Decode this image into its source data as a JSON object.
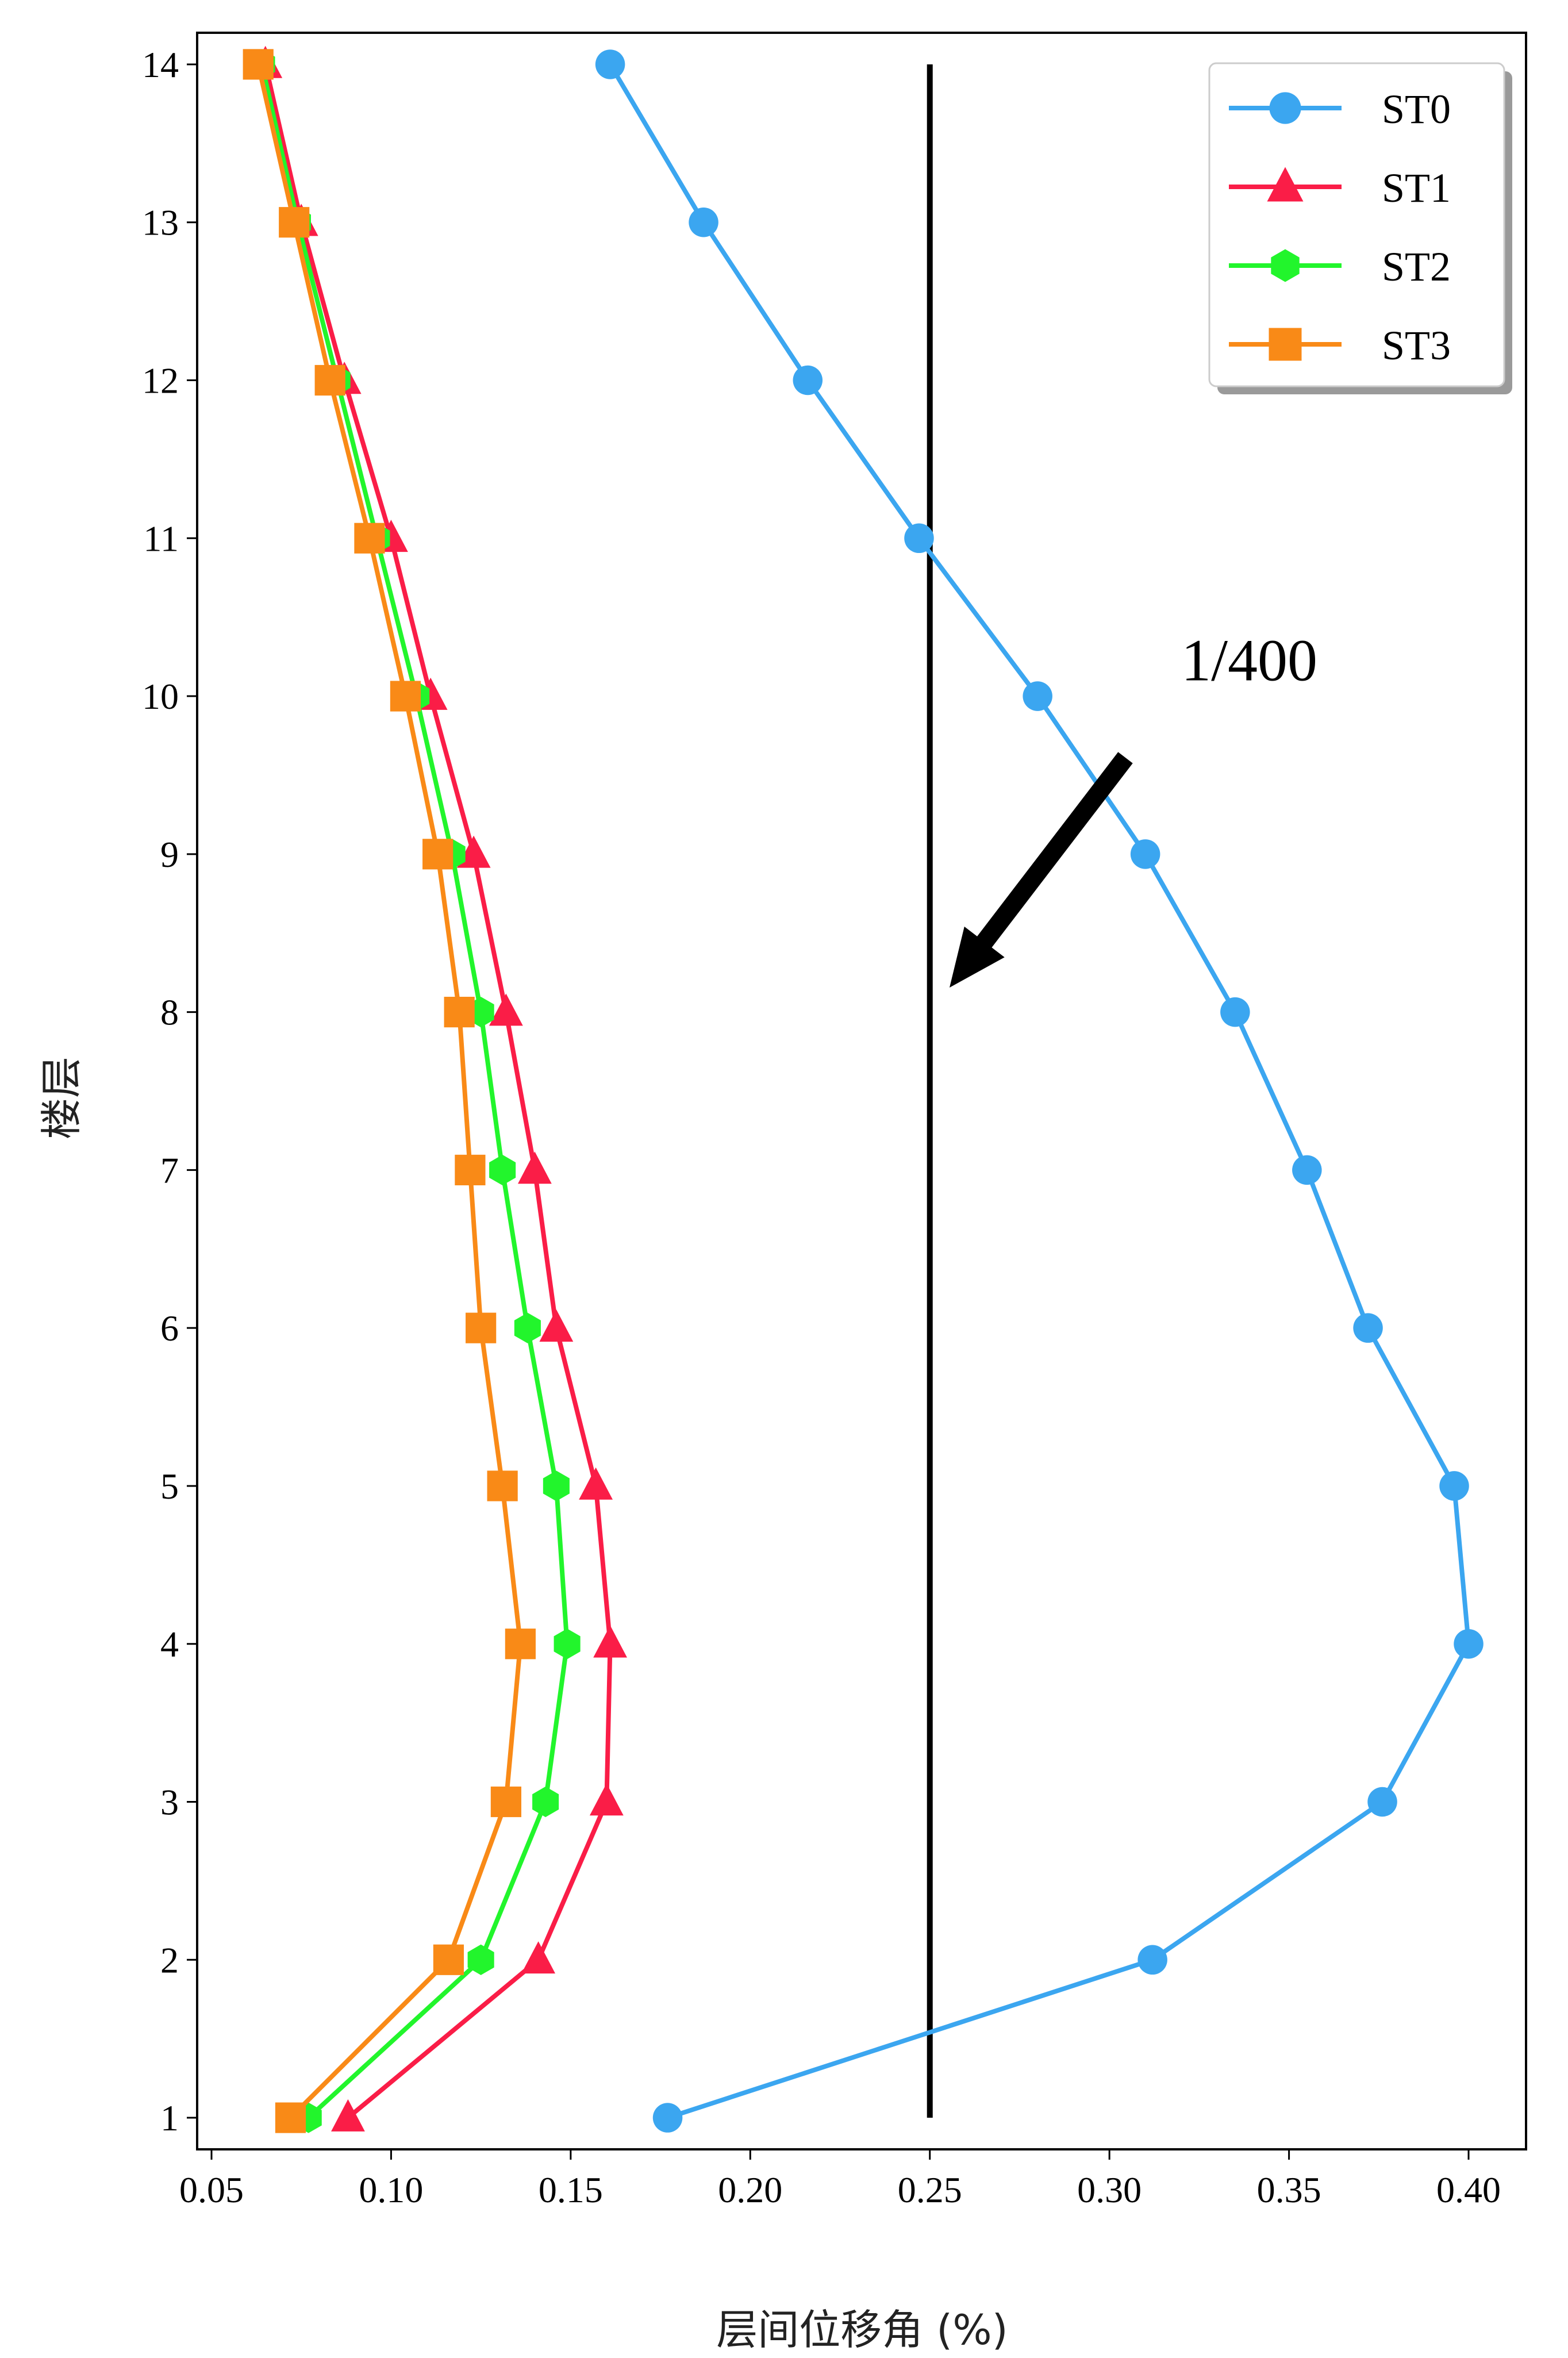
{
  "chart_data": {
    "type": "line",
    "title": "",
    "xlabel": "层间位移角 (%)",
    "ylabel": "楼层",
    "xlim": [
      0.046,
      0.416
    ],
    "ylim": [
      0.8,
      14.2
    ],
    "xticks": [
      "0.05",
      "0.10",
      "0.15",
      "0.20",
      "0.25",
      "0.30",
      "0.35",
      "0.40"
    ],
    "yticks": [
      "1",
      "2",
      "3",
      "4",
      "5",
      "6",
      "7",
      "8",
      "9",
      "10",
      "11",
      "12",
      "13",
      "14"
    ],
    "y": [
      1,
      2,
      3,
      4,
      5,
      6,
      7,
      8,
      9,
      10,
      11,
      12,
      13,
      14
    ],
    "grid": false,
    "legend_position": "top-right",
    "series": [
      {
        "name": "ST0",
        "color": "#3ba6f0",
        "marker": "circle",
        "x": [
          0.177,
          0.312,
          0.376,
          0.4,
          0.396,
          0.372,
          0.355,
          0.335,
          0.31,
          0.28,
          0.247,
          0.216,
          0.187,
          0.161
        ]
      },
      {
        "name": "ST1",
        "color": "#fa1d47",
        "marker": "triangle",
        "x": [
          0.088,
          0.141,
          0.16,
          0.161,
          0.157,
          0.146,
          0.14,
          0.132,
          0.123,
          0.111,
          0.1,
          0.087,
          0.075,
          0.065
        ]
      },
      {
        "name": "ST2",
        "color": "#22f52c",
        "marker": "hexagon",
        "x": [
          0.077,
          0.125,
          0.143,
          0.149,
          0.146,
          0.138,
          0.131,
          0.125,
          0.117,
          0.107,
          0.096,
          0.085,
          0.074,
          0.064
        ]
      },
      {
        "name": "ST3",
        "color": "#f98a17",
        "marker": "square",
        "x": [
          0.072,
          0.116,
          0.132,
          0.136,
          0.131,
          0.125,
          0.122,
          0.119,
          0.113,
          0.104,
          0.094,
          0.083,
          0.073,
          0.063
        ]
      }
    ],
    "reference_line": {
      "x": 0.25,
      "y_range": [
        1,
        14
      ],
      "color": "#000000"
    },
    "annotation": {
      "text": "1/400",
      "x": 0.32,
      "y": 10.1
    }
  }
}
